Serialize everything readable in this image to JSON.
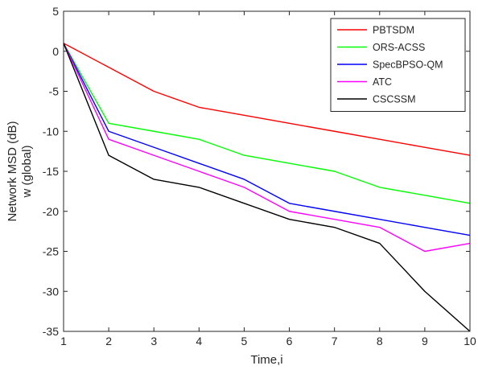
{
  "chart_data": {
    "type": "line",
    "title": "",
    "xlabel": "Time,i",
    "ylabel_lines": [
      "Network MSD (dB)",
      "w (global)"
    ],
    "xlim": [
      1,
      10
    ],
    "ylim": [
      -35,
      5
    ],
    "x_ticks": [
      1,
      2,
      3,
      4,
      5,
      6,
      7,
      8,
      9,
      10
    ],
    "y_ticks": [
      5,
      0,
      -5,
      -10,
      -15,
      -20,
      -25,
      -30,
      -35
    ],
    "grid": false,
    "legend_position": "top-right",
    "x": [
      1,
      2,
      3,
      4,
      5,
      6,
      7,
      8,
      9,
      10
    ],
    "series": [
      {
        "name": "PBTSDM",
        "color": "#ff0000",
        "values": [
          1,
          -2,
          -5,
          -7,
          -8,
          -9,
          -10,
          -11,
          -12,
          -13
        ]
      },
      {
        "name": "ORS-ACSS",
        "color": "#00ff00",
        "values": [
          1,
          -9,
          -10,
          -11,
          -13,
          -14,
          -15,
          -17,
          -18,
          -19
        ]
      },
      {
        "name": "SpecBPSO-QM",
        "color": "#0000ff",
        "values": [
          1,
          -10,
          -12,
          -14,
          -16,
          -19,
          -20,
          -21,
          -22,
          -23
        ]
      },
      {
        "name": "ATC",
        "color": "#ff00ff",
        "values": [
          1,
          -11,
          -13,
          -15,
          -17,
          -20,
          -21,
          -22,
          -25,
          -24
        ]
      },
      {
        "name": "CSCSSM",
        "color": "#000000",
        "values": [
          1,
          -13,
          -16,
          -17,
          -19,
          -21,
          -22,
          -24,
          -30,
          -35
        ]
      }
    ]
  }
}
